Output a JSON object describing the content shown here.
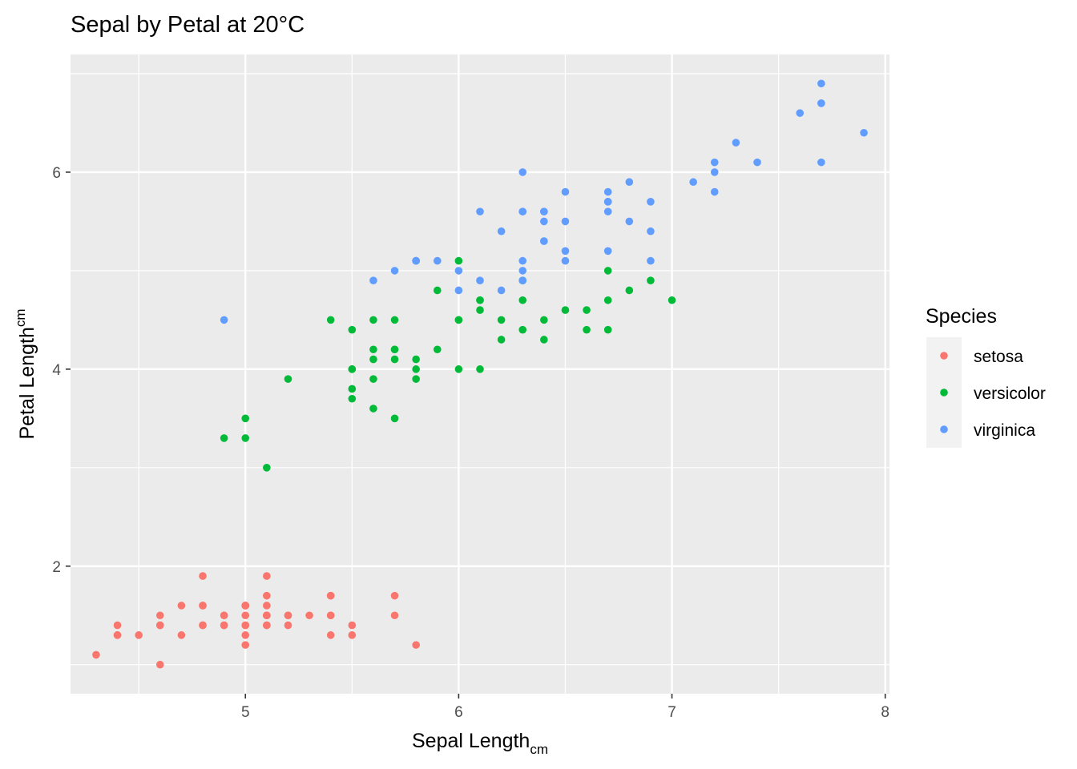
{
  "chart_data": {
    "type": "scatter",
    "title": "Sepal by Petal at 20°C",
    "xlabel": {
      "main": "Sepal Length",
      "subscript": "cm"
    },
    "ylabel": {
      "main": "Petal Length",
      "superscript": "cm"
    },
    "xlim": [
      4.18,
      8.02
    ],
    "ylim": [
      0.705,
      7.195
    ],
    "x_ticks": [
      5,
      6,
      7,
      8
    ],
    "x_tick_labels": [
      "5",
      "6",
      "7",
      "8"
    ],
    "y_ticks": [
      2,
      4,
      6
    ],
    "y_tick_labels": [
      "2",
      "4",
      "6"
    ],
    "x_minor": [
      4.5,
      5.5,
      6.5,
      7.5
    ],
    "y_minor": [
      1,
      3,
      5,
      7
    ],
    "grid": true,
    "panel_background": "#ebebeb",
    "legend": {
      "title": "Species",
      "position": "right",
      "key_background": "#f2f2f2"
    },
    "series": [
      {
        "name": "setosa",
        "color": "#f8766d",
        "points": [
          [
            5.1,
            1.4
          ],
          [
            4.9,
            1.4
          ],
          [
            4.7,
            1.3
          ],
          [
            4.6,
            1.5
          ],
          [
            5.0,
            1.4
          ],
          [
            5.4,
            1.7
          ],
          [
            4.6,
            1.4
          ],
          [
            5.0,
            1.5
          ],
          [
            4.4,
            1.4
          ],
          [
            4.9,
            1.5
          ],
          [
            5.4,
            1.5
          ],
          [
            4.8,
            1.6
          ],
          [
            4.8,
            1.4
          ],
          [
            4.3,
            1.1
          ],
          [
            5.8,
            1.2
          ],
          [
            5.7,
            1.5
          ],
          [
            5.4,
            1.3
          ],
          [
            5.1,
            1.4
          ],
          [
            5.7,
            1.7
          ],
          [
            5.1,
            1.5
          ],
          [
            5.4,
            1.7
          ],
          [
            5.1,
            1.5
          ],
          [
            4.6,
            1.0
          ],
          [
            5.1,
            1.7
          ],
          [
            4.8,
            1.9
          ],
          [
            5.0,
            1.6
          ],
          [
            5.0,
            1.6
          ],
          [
            5.2,
            1.5
          ],
          [
            5.2,
            1.4
          ],
          [
            4.7,
            1.6
          ],
          [
            4.8,
            1.6
          ],
          [
            5.4,
            1.5
          ],
          [
            5.2,
            1.5
          ],
          [
            5.5,
            1.4
          ],
          [
            4.9,
            1.5
          ],
          [
            5.0,
            1.2
          ],
          [
            5.5,
            1.3
          ],
          [
            4.9,
            1.4
          ],
          [
            4.4,
            1.3
          ],
          [
            5.1,
            1.5
          ],
          [
            5.0,
            1.3
          ],
          [
            4.5,
            1.3
          ],
          [
            4.4,
            1.3
          ],
          [
            5.0,
            1.6
          ],
          [
            5.1,
            1.9
          ],
          [
            4.8,
            1.4
          ],
          [
            5.1,
            1.6
          ],
          [
            4.6,
            1.4
          ],
          [
            5.3,
            1.5
          ],
          [
            5.0,
            1.4
          ]
        ]
      },
      {
        "name": "versicolor",
        "color": "#00ba38",
        "points": [
          [
            7.0,
            4.7
          ],
          [
            6.4,
            4.5
          ],
          [
            6.9,
            4.9
          ],
          [
            5.5,
            4.0
          ],
          [
            6.5,
            4.6
          ],
          [
            5.7,
            4.5
          ],
          [
            6.3,
            4.7
          ],
          [
            4.9,
            3.3
          ],
          [
            6.6,
            4.6
          ],
          [
            5.2,
            3.9
          ],
          [
            5.0,
            3.5
          ],
          [
            5.9,
            4.2
          ],
          [
            6.0,
            4.0
          ],
          [
            6.1,
            4.7
          ],
          [
            5.6,
            3.6
          ],
          [
            6.7,
            4.4
          ],
          [
            5.6,
            4.5
          ],
          [
            5.8,
            4.1
          ],
          [
            6.2,
            4.5
          ],
          [
            5.6,
            3.9
          ],
          [
            5.9,
            4.8
          ],
          [
            6.1,
            4.0
          ],
          [
            6.3,
            4.9
          ],
          [
            6.1,
            4.7
          ],
          [
            6.4,
            4.3
          ],
          [
            6.6,
            4.4
          ],
          [
            6.8,
            4.8
          ],
          [
            6.7,
            5.0
          ],
          [
            6.0,
            4.5
          ],
          [
            5.7,
            3.5
          ],
          [
            5.5,
            3.8
          ],
          [
            5.5,
            3.7
          ],
          [
            5.8,
            3.9
          ],
          [
            6.0,
            5.1
          ],
          [
            5.4,
            4.5
          ],
          [
            6.0,
            4.5
          ],
          [
            6.7,
            4.7
          ],
          [
            6.3,
            4.4
          ],
          [
            5.6,
            4.1
          ],
          [
            5.5,
            4.0
          ],
          [
            5.5,
            4.4
          ],
          [
            6.1,
            4.6
          ],
          [
            5.8,
            4.0
          ],
          [
            5.0,
            3.3
          ],
          [
            5.6,
            4.2
          ],
          [
            5.7,
            4.2
          ],
          [
            5.7,
            4.2
          ],
          [
            6.2,
            4.3
          ],
          [
            5.1,
            3.0
          ],
          [
            5.7,
            4.1
          ]
        ]
      },
      {
        "name": "virginica",
        "color": "#619cff",
        "points": [
          [
            6.3,
            6.0
          ],
          [
            5.8,
            5.1
          ],
          [
            7.1,
            5.9
          ],
          [
            6.3,
            5.6
          ],
          [
            6.5,
            5.8
          ],
          [
            7.6,
            6.6
          ],
          [
            4.9,
            4.5
          ],
          [
            7.3,
            6.3
          ],
          [
            6.7,
            5.8
          ],
          [
            7.2,
            6.1
          ],
          [
            6.5,
            5.1
          ],
          [
            6.4,
            5.3
          ],
          [
            6.8,
            5.5
          ],
          [
            5.7,
            5.0
          ],
          [
            5.8,
            5.1
          ],
          [
            6.4,
            5.3
          ],
          [
            6.5,
            5.5
          ],
          [
            7.7,
            6.7
          ],
          [
            7.7,
            6.9
          ],
          [
            6.0,
            5.0
          ],
          [
            6.9,
            5.7
          ],
          [
            5.6,
            4.9
          ],
          [
            7.7,
            6.7
          ],
          [
            6.3,
            4.9
          ],
          [
            6.7,
            5.7
          ],
          [
            7.2,
            6.0
          ],
          [
            6.2,
            4.8
          ],
          [
            6.1,
            4.9
          ],
          [
            6.4,
            5.6
          ],
          [
            7.2,
            5.8
          ],
          [
            7.4,
            6.1
          ],
          [
            7.9,
            6.4
          ],
          [
            6.4,
            5.6
          ],
          [
            6.3,
            5.1
          ],
          [
            6.1,
            5.6
          ],
          [
            7.7,
            6.1
          ],
          [
            6.3,
            5.6
          ],
          [
            6.4,
            5.5
          ],
          [
            6.0,
            4.8
          ],
          [
            6.9,
            5.4
          ],
          [
            6.7,
            5.6
          ],
          [
            6.9,
            5.1
          ],
          [
            5.8,
            5.1
          ],
          [
            6.8,
            5.9
          ],
          [
            6.7,
            5.7
          ],
          [
            6.7,
            5.2
          ],
          [
            6.3,
            5.0
          ],
          [
            6.5,
            5.2
          ],
          [
            6.2,
            5.4
          ],
          [
            5.9,
            5.1
          ]
        ]
      }
    ]
  }
}
